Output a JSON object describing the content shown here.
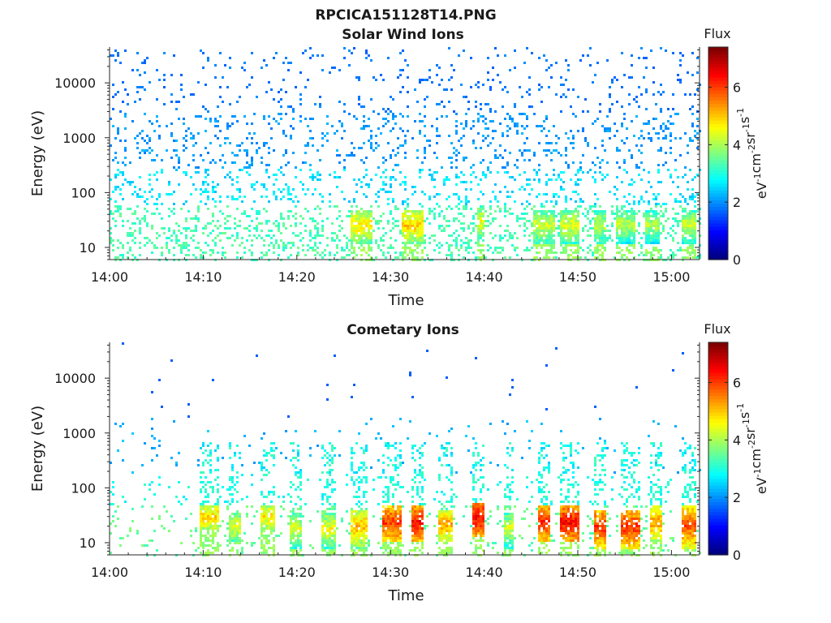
{
  "figure_title": "RPCICA151128T14.PNG",
  "colors": {
    "colormap": [
      "#00007f",
      "#0000ff",
      "#007fff",
      "#00ffff",
      "#7fff7f",
      "#ffff00",
      "#ff7f00",
      "#ff0000",
      "#7f0000"
    ]
  },
  "chart_data": [
    {
      "type": "heatmap",
      "title": "Solar Wind Ions",
      "xlabel": "Time",
      "ylabel": "Energy (eV)",
      "x_ticks": [
        "14:00",
        "14:10",
        "14:20",
        "14:30",
        "14:40",
        "14:50",
        "15:00"
      ],
      "x_tick_minutes": [
        0,
        10,
        20,
        30,
        40,
        50,
        60
      ],
      "xlim_minutes": [
        0,
        63
      ],
      "y_scale": "log",
      "ylim": [
        6,
        45000
      ],
      "y_ticks": [
        "10",
        "100",
        "1000",
        "10000"
      ],
      "y_tick_values": [
        10,
        100,
        1000,
        10000
      ],
      "colorbar": {
        "title": "Flux",
        "unit_base": "eV",
        "unit_parts": [
          {
            "text": "eV",
            "sup": "-1"
          },
          {
            "text": "cm",
            "sup": "-2"
          },
          {
            "text": "sr",
            "sup": "-1"
          },
          {
            "text": "s",
            "sup": "-1"
          }
        ],
        "ticks": [
          "0",
          "2",
          "4",
          "6"
        ],
        "tick_values": [
          0,
          2,
          4,
          6
        ],
        "range": [
          0,
          7.4
        ]
      },
      "peak_flux_bands": [
        {
          "start_minute": 25.5,
          "end_minute": 28.0,
          "energy_range": [
            18,
            40
          ],
          "flux": 5.2
        },
        {
          "start_minute": 31.0,
          "end_minute": 33.5,
          "energy_range": [
            18,
            40
          ],
          "flux": 5.4
        },
        {
          "start_minute": 39.0,
          "end_minute": 40.0,
          "energy_range": [
            20,
            45
          ],
          "flux": 5.0
        },
        {
          "start_minute": 45.0,
          "end_minute": 47.5,
          "energy_range": [
            18,
            40
          ],
          "flux": 4.8
        },
        {
          "start_minute": 48.0,
          "end_minute": 50.0,
          "energy_range": [
            18,
            40
          ],
          "flux": 4.9
        },
        {
          "start_minute": 51.5,
          "end_minute": 53.0,
          "energy_range": [
            18,
            40
          ],
          "flux": 4.6
        },
        {
          "start_minute": 54.0,
          "end_minute": 56.0,
          "energy_range": [
            18,
            40
          ],
          "flux": 4.6
        },
        {
          "start_minute": 57.0,
          "end_minute": 58.5,
          "energy_range": [
            18,
            40
          ],
          "flux": 4.5
        },
        {
          "start_minute": 61.0,
          "end_minute": 62.5,
          "energy_range": [
            18,
            40
          ],
          "flux": 4.7
        }
      ]
    },
    {
      "type": "heatmap",
      "title": "Cometary Ions",
      "xlabel": "Time",
      "ylabel": "Energy (eV)",
      "x_ticks": [
        "14:00",
        "14:10",
        "14:20",
        "14:30",
        "14:40",
        "14:50",
        "15:00"
      ],
      "x_tick_minutes": [
        0,
        10,
        20,
        30,
        40,
        50,
        60
      ],
      "xlim_minutes": [
        0,
        63
      ],
      "y_scale": "log",
      "ylim": [
        6,
        45000
      ],
      "y_ticks": [
        "10",
        "100",
        "1000",
        "10000"
      ],
      "y_tick_values": [
        10,
        100,
        1000,
        10000
      ],
      "colorbar": {
        "title": "Flux",
        "unit_base": "eV",
        "unit_parts": [
          {
            "text": "eV",
            "sup": "-1"
          },
          {
            "text": "cm",
            "sup": "-2"
          },
          {
            "text": "sr",
            "sup": "-1"
          },
          {
            "text": "s",
            "sup": "-1"
          }
        ],
        "ticks": [
          "0",
          "2",
          "4",
          "6"
        ],
        "tick_values": [
          0,
          2,
          4,
          6
        ],
        "range": [
          0,
          7.4
        ]
      },
      "peak_flux_bands": [
        {
          "start_minute": 9.5,
          "end_minute": 11.5,
          "energy_range": [
            25,
            40
          ],
          "flux": 5.3
        },
        {
          "start_minute": 12.5,
          "end_minute": 14.0,
          "energy_range": [
            15,
            30
          ],
          "flux": 4.9
        },
        {
          "start_minute": 16.0,
          "end_minute": 17.5,
          "energy_range": [
            25,
            40
          ],
          "flux": 5.2
        },
        {
          "start_minute": 19.0,
          "end_minute": 20.5,
          "energy_range": [
            12,
            30
          ],
          "flux": 4.8
        },
        {
          "start_minute": 22.5,
          "end_minute": 24.0,
          "energy_range": [
            12,
            30
          ],
          "flux": 5.0
        },
        {
          "start_minute": 25.5,
          "end_minute": 27.5,
          "energy_range": [
            12,
            35
          ],
          "flux": 5.6
        },
        {
          "start_minute": 29.0,
          "end_minute": 31.0,
          "energy_range": [
            15,
            40
          ],
          "flux": 6.5
        },
        {
          "start_minute": 32.0,
          "end_minute": 33.5,
          "energy_range": [
            15,
            40
          ],
          "flux": 6.8
        },
        {
          "start_minute": 35.0,
          "end_minute": 36.5,
          "energy_range": [
            15,
            35
          ],
          "flux": 5.7
        },
        {
          "start_minute": 38.5,
          "end_minute": 40.0,
          "energy_range": [
            20,
            45
          ],
          "flux": 6.9
        },
        {
          "start_minute": 42.0,
          "end_minute": 43.0,
          "energy_range": [
            12,
            30
          ],
          "flux": 4.8
        },
        {
          "start_minute": 45.5,
          "end_minute": 47.0,
          "energy_range": [
            15,
            40
          ],
          "flux": 6.6
        },
        {
          "start_minute": 48.0,
          "end_minute": 50.0,
          "energy_range": [
            15,
            40
          ],
          "flux": 6.9
        },
        {
          "start_minute": 51.5,
          "end_minute": 53.0,
          "energy_range": [
            12,
            35
          ],
          "flux": 6.6
        },
        {
          "start_minute": 54.5,
          "end_minute": 56.5,
          "energy_range": [
            12,
            35
          ],
          "flux": 6.6
        },
        {
          "start_minute": 57.5,
          "end_minute": 59.0,
          "energy_range": [
            15,
            40
          ],
          "flux": 5.8
        },
        {
          "start_minute": 61.0,
          "end_minute": 62.5,
          "energy_range": [
            12,
            40
          ],
          "flux": 6.4
        }
      ]
    }
  ]
}
